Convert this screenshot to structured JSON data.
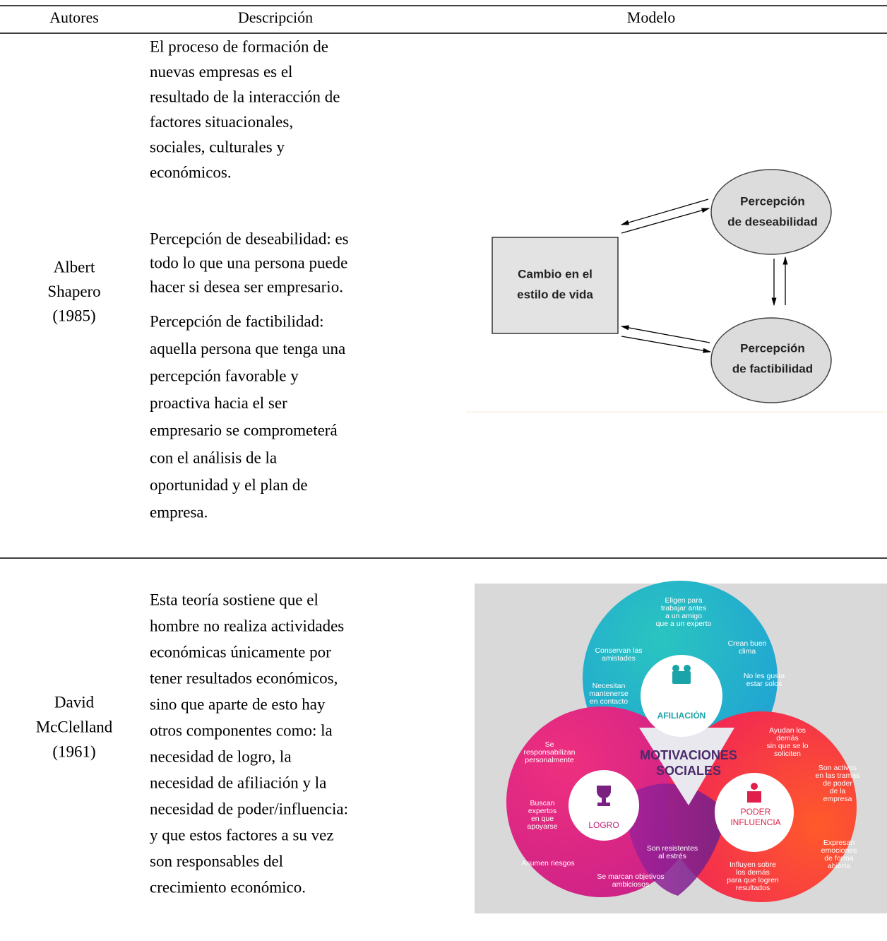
{
  "table": {
    "headers": [
      "Autores",
      "Descripción",
      "Modelo"
    ],
    "rows": [
      {
        "author": [
          "Albert",
          "Shapero",
          "(1985)"
        ],
        "description": [
          [
            "El proceso de formación de",
            "nuevas empresas es el",
            "resultado de la interacción de",
            "factores situacionales,",
            "sociales, culturales y",
            "económicos."
          ],
          [
            "Percepción de deseabilidad: es",
            "todo lo que una persona puede",
            "hacer si desea ser empresario."
          ],
          [
            "Percepción de factibilidad:",
            "aquella persona que tenga una",
            "percepción favorable y",
            "proactiva hacia el ser",
            "empresario se comprometerá",
            "con el análisis de la",
            "oportunidad y el plan de",
            "empresa."
          ]
        ],
        "model": {
          "box": [
            "Cambio en el",
            "estilo de vida"
          ],
          "desirability": [
            "Percepción",
            "de deseabilidad"
          ],
          "feasibility": [
            "Percepción",
            "de factibilidad"
          ]
        }
      },
      {
        "author": [
          "David",
          "McClelland",
          "(1961)"
        ],
        "description": [
          [
            "Esta teoría sostiene que el",
            "hombre no realiza actividades",
            "económicas únicamente por",
            "tener resultados económicos,",
            "sino que aparte de esto hay",
            "otros componentes como: la",
            "necesidad de logro, la",
            "necesidad de afiliación y la",
            "necesidad de poder/influencia:",
            "y que estos factores a su vez",
            "son responsables del",
            "crecimiento económico."
          ]
        ],
        "model": {
          "items": [
            [
              "Eligen para",
              "trabajar antes",
              "a un amigo",
              "que a un experto"
            ],
            [
              "Crean buen",
              "clima"
            ],
            [
              "Conservan las",
              "amistades"
            ],
            [
              "No les gusta",
              "estar solos"
            ],
            [
              "Necesitan",
              "mantenerse",
              "en contacto"
            ],
            [
              "AFILIACIÓN"
            ],
            [
              "Ayudan los",
              "demás",
              "sin que se lo",
              "soliciten"
            ],
            [
              "MOTIVACIONES",
              "SOCIALES"
            ],
            [
              "Se",
              "responsabilizan",
              "personalmente"
            ],
            [
              "Son activos",
              "en las tramas",
              "de poder",
              "de la",
              "empresa"
            ],
            [
              "Buscan",
              "expertos",
              "en que",
              "apoyarse"
            ],
            [
              "LOGRO"
            ],
            [
              "PODER",
              "INFLUENCIA"
            ],
            [
              "Expresan",
              "emociones",
              "de forma",
              "abierta"
            ],
            [
              "Son resistentes",
              "al estrés"
            ],
            [
              "Asumen riesgos"
            ],
            [
              "Influyen sobre",
              "los demás",
              "para que logren",
              "resultados"
            ],
            [
              "Se marcan objetivos",
              "ambiciosos"
            ]
          ]
        }
      }
    ]
  }
}
